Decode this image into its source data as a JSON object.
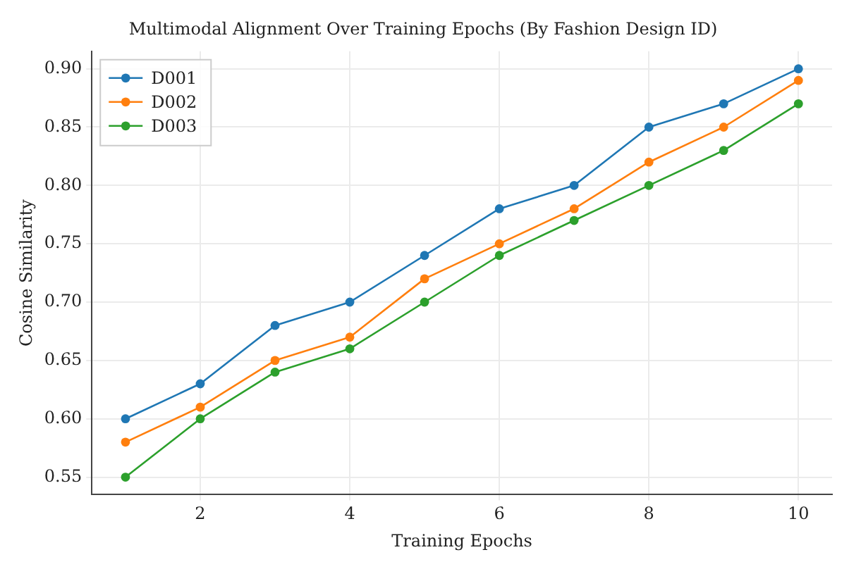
{
  "chart_data": {
    "type": "line",
    "title": "Multimodal Alignment Over Training Epochs (By Fashion Design ID)",
    "xlabel": "Training Epochs",
    "ylabel": "Cosine Similarity",
    "x": [
      1,
      2,
      3,
      4,
      5,
      6,
      7,
      8,
      9,
      10
    ],
    "series": [
      {
        "name": "D001",
        "color": "#1f77b4",
        "values": [
          0.6,
          0.63,
          0.68,
          0.7,
          0.74,
          0.78,
          0.8,
          0.85,
          0.87,
          0.9
        ]
      },
      {
        "name": "D002",
        "color": "#ff7f0e",
        "values": [
          0.58,
          0.61,
          0.65,
          0.67,
          0.72,
          0.75,
          0.78,
          0.82,
          0.85,
          0.89
        ]
      },
      {
        "name": "D003",
        "color": "#2ca02c",
        "values": [
          0.55,
          0.6,
          0.64,
          0.66,
          0.7,
          0.74,
          0.77,
          0.8,
          0.83,
          0.87
        ]
      }
    ],
    "xlim": [
      0.55,
      10.45
    ],
    "xticks": [
      2,
      4,
      6,
      8,
      10
    ],
    "ylim": [
      0.535,
      0.915
    ],
    "yticks": [
      0.55,
      {
        "value": 0.6,
        "label": "0.60"
      },
      0.65,
      {
        "value": 0.7,
        "label": "0.70"
      },
      0.75,
      {
        "value": 0.8,
        "label": "0.80"
      },
      0.85,
      {
        "value": 0.9,
        "label": "0.90"
      }
    ],
    "grid": true,
    "legend": "top left",
    "marker": "circle",
    "line_style": "solid"
  }
}
